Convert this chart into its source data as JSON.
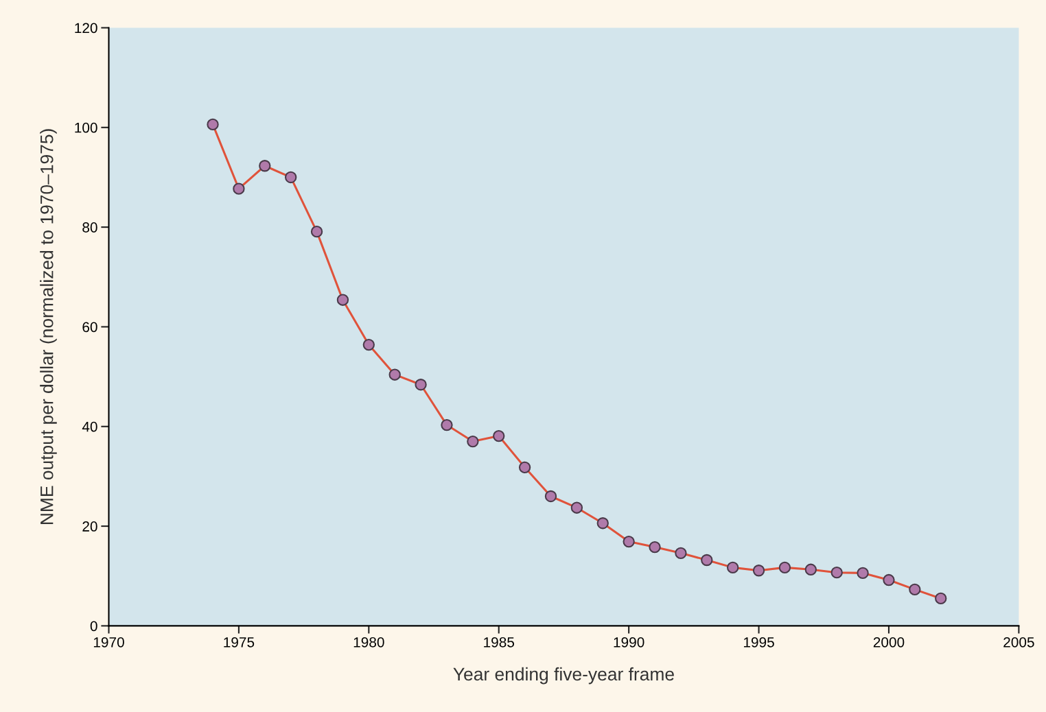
{
  "chart_data": {
    "type": "line",
    "xlabel": "Year ending five-year frame",
    "ylabel": "NME output per dollar (normalized to 1970–1975)",
    "x": [
      1974,
      1975,
      1976,
      1977,
      1978,
      1979,
      1980,
      1981,
      1982,
      1983,
      1984,
      1985,
      1986,
      1987,
      1988,
      1989,
      1990,
      1991,
      1992,
      1993,
      1994,
      1995,
      1996,
      1997,
      1998,
      1999,
      2000,
      2001,
      2002
    ],
    "series": [
      {
        "color": "#e0533b",
        "values": [
          100.6,
          87.7,
          92.3,
          90.0,
          79.1,
          65.4,
          56.4,
          50.4,
          48.4,
          40.3,
          37.0,
          38.1,
          31.8,
          26.0,
          23.7,
          20.6,
          16.9,
          15.8,
          14.6,
          13.2,
          11.7,
          11.1,
          11.7,
          11.3,
          10.7,
          10.6,
          9.2,
          7.3,
          5.5
        ]
      }
    ],
    "xlim": [
      1970,
      2005
    ],
    "xticks": [
      1970,
      1975,
      1980,
      1985,
      1990,
      1995,
      2000,
      2005
    ],
    "ylim": [
      0,
      120
    ],
    "yticks": [
      0,
      20,
      40,
      60,
      80,
      100,
      120
    ],
    "marker": "circle",
    "line_style": "solid",
    "grid": false,
    "legend": false
  }
}
